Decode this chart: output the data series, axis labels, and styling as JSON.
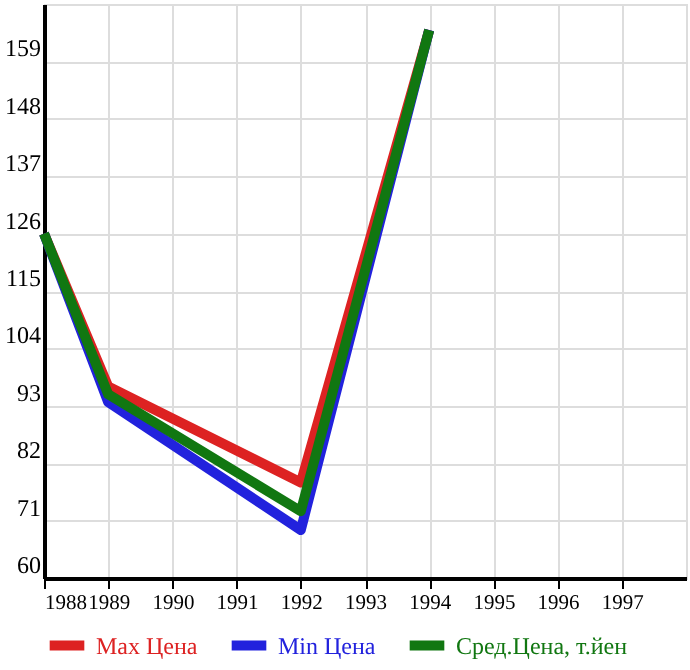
{
  "chart_data": {
    "type": "line",
    "x": [
      1988,
      1989,
      1992,
      1994
    ],
    "series": [
      {
        "name": "Max Цена",
        "color": "#dd2222",
        "values": [
          126,
          96.7,
          78.3,
          165
        ]
      },
      {
        "name": "Min Цена",
        "color": "#2222dd",
        "values": [
          126,
          93.7,
          69.2,
          165
        ]
      },
      {
        "name": "Сред.Цена, т.йен",
        "color": "#117711",
        "values": [
          126,
          95.2,
          72.8,
          165
        ]
      }
    ],
    "xlim": [
      1988,
      1998
    ],
    "xticks": [
      1988,
      1989,
      1990,
      1991,
      1992,
      1993,
      1994,
      1995,
      1996,
      1997
    ],
    "ylim": [
      60,
      170
    ],
    "yticks": [
      60,
      71,
      82,
      93,
      104,
      115,
      126,
      137,
      148,
      159
    ],
    "grid": true,
    "legend": "bottom",
    "marker": "none",
    "line_style": "solid"
  }
}
